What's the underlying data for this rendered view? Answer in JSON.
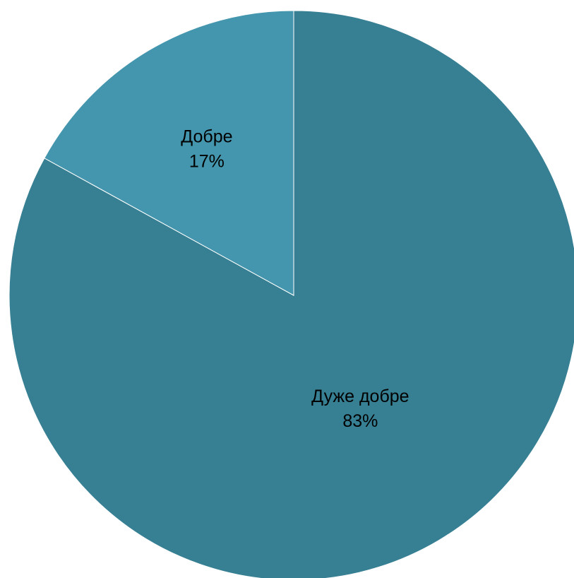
{
  "chart_data": {
    "type": "pie",
    "title": "",
    "categories": [
      "Дуже добре",
      "Добре"
    ],
    "values": [
      83,
      17
    ],
    "units": "%",
    "data_labels": [
      {
        "category": "Дуже добре",
        "percent_text": "83%"
      },
      {
        "category": "Добре",
        "percent_text": "17%"
      }
    ],
    "colors": [
      "#377f93",
      "#4396ad"
    ],
    "start_angle_deg_clockwise_from_top": 0,
    "direction": "clockwise",
    "legend": "none"
  }
}
